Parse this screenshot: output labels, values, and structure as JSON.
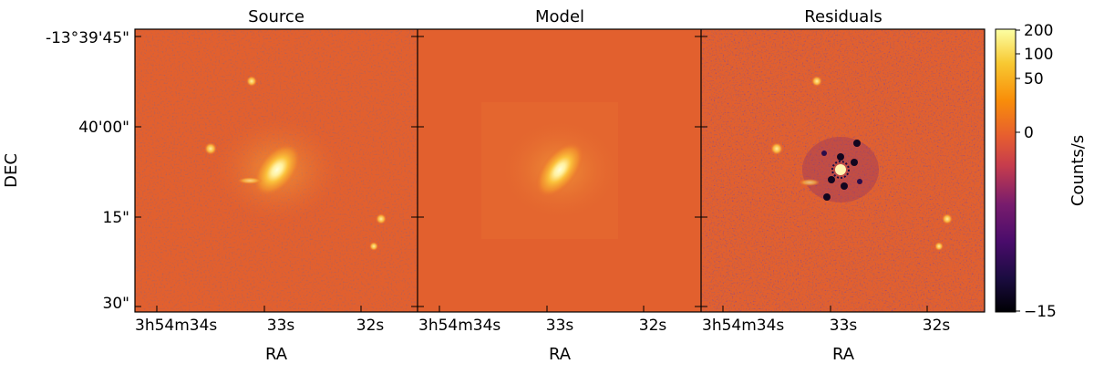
{
  "chart_data": {
    "type": "heatmap",
    "panels": [
      {
        "title": "Source",
        "xlabel": "RA",
        "xticks": [
          "3h54m34s",
          "33s",
          "32s"
        ]
      },
      {
        "title": "Model",
        "xlabel": "RA",
        "xticks": [
          "3h54m34s",
          "33s",
          "32s"
        ]
      },
      {
        "title": "Residuals",
        "xlabel": "RA",
        "xticks": [
          "3h54m34s",
          "33s",
          "32s"
        ]
      }
    ],
    "ylabel": "DEC",
    "yticks": [
      "-13°39'45\"",
      "40'00\"",
      "15\"",
      "30\""
    ],
    "colorbar": {
      "label": "Counts/s",
      "colormap": "inferno",
      "scale": "asinh",
      "range": [
        -15,
        200
      ],
      "ticks": [
        "200",
        "100",
        "50",
        "0",
        "−15"
      ]
    }
  }
}
